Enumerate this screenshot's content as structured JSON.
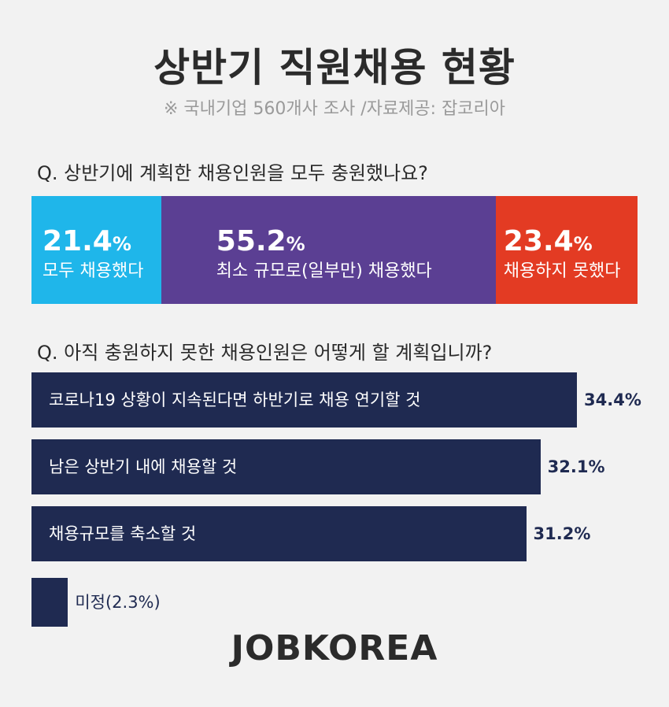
{
  "title": "상반기 직원채용 현황",
  "subtitle": "※ 국내기업 560개사 조사 /자료제공: 잡코리아",
  "q1": "Q. 상반기에 계획한 채용인원을 모두 충원했나요?",
  "q2": "Q. 아직 충원하지 못한 채용인원은 어떻게 할 계획입니까?",
  "logo": "JOBKOREA",
  "chart_data": [
    {
      "type": "bar",
      "stacked": true,
      "orientation": "horizontal",
      "categories": [
        "모두 채용했다",
        "최소 규모로(일부만) 채용했다",
        "채용하지 못했다"
      ],
      "values": [
        21.4,
        55.2,
        23.4
      ],
      "unit": "%",
      "colors": [
        "#1fb6ea",
        "#5b3f93",
        "#e33b23"
      ]
    },
    {
      "type": "bar",
      "orientation": "horizontal",
      "categories": [
        "코로나19 상황이 지속된다면 하반기로 채용 연기할 것",
        "남은 상반기 내에 채용할 것",
        "채용규모를 축소할 것",
        "미정"
      ],
      "values": [
        34.4,
        32.1,
        31.2,
        2.3
      ],
      "value_labels": [
        "34.4%",
        "32.1%",
        "31.2%",
        "미정(2.3%)"
      ],
      "unit": "%",
      "color": "#1f2a51"
    }
  ]
}
